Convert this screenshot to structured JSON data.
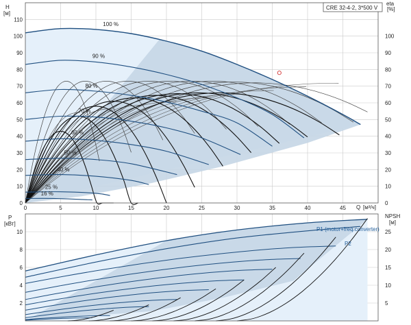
{
  "title_box": "CRE 32-4-2, 3*500 V",
  "chart_data": [
    {
      "type": "line",
      "ylabel": "H",
      "yunit": "[м]",
      "y2label": "eta",
      "y2unit": "[%]",
      "xlabel": "Q",
      "xunit": "[м³/ч]",
      "xlim": [
        0,
        50
      ],
      "ylim": [
        0,
        120
      ],
      "y2lim": [
        0,
        120
      ],
      "x_ticks": [
        0,
        5,
        10,
        15,
        20,
        25,
        30,
        35,
        40,
        45
      ],
      "y_ticks": [
        0,
        10,
        20,
        30,
        40,
        50,
        60,
        70,
        80,
        90,
        100,
        110
      ],
      "y2_ticks": [
        0,
        10,
        20,
        30,
        40,
        50,
        60,
        70,
        80,
        90,
        100
      ],
      "grid": true,
      "qh_curves": [
        {
          "name": "100 %",
          "x": [
            0,
            5,
            10,
            15,
            20,
            25,
            30,
            35,
            40,
            45,
            47.5
          ],
          "y": [
            102,
            104.5,
            104,
            101.5,
            97,
            91,
            83,
            74,
            64,
            53,
            47
          ]
        },
        {
          "name": "90 %",
          "x": [
            0,
            5,
            10,
            15,
            20,
            25,
            30,
            35,
            39.5
          ],
          "y": [
            83,
            85.5,
            84.5,
            81.5,
            77,
            71,
            63,
            53,
            39
          ]
        },
        {
          "name": "80 %",
          "x": [
            0,
            5,
            10,
            15,
            20,
            25,
            30,
            35
          ],
          "y": [
            66,
            68,
            67,
            64.5,
            60.5,
            55,
            48,
            34
          ]
        },
        {
          "name": "70 %",
          "x": [
            0,
            5,
            10,
            15,
            20,
            25,
            30.5
          ],
          "y": [
            50,
            52,
            51.5,
            49,
            45,
            39,
            29
          ]
        },
        {
          "name": "60 %",
          "x": [
            0,
            5,
            10,
            15,
            20,
            26
          ],
          "y": [
            37,
            38.5,
            37.5,
            35,
            31,
            23
          ]
        },
        {
          "name": "50 %",
          "x": [
            0,
            5,
            10,
            15,
            21.5
          ],
          "y": [
            26,
            26.8,
            26,
            23.5,
            17
          ]
        },
        {
          "name": "40 %",
          "x": [
            0,
            5,
            10,
            15,
            17.5
          ],
          "y": [
            16.5,
            17,
            16,
            13.5,
            11
          ]
        },
        {
          "name": "25 %",
          "x": [
            0,
            5,
            10,
            12
          ],
          "y": [
            6.5,
            6.7,
            5.8,
            4.5
          ]
        },
        {
          "name": "16 %",
          "x": [
            0,
            4,
            8,
            9.5
          ],
          "y": [
            2.7,
            2.7,
            2.1,
            1.8
          ]
        }
      ],
      "pct_labels": [
        {
          "text": "100 %",
          "x": 11,
          "y": 106
        },
        {
          "text": "90 %",
          "x": 9.5,
          "y": 87
        },
        {
          "text": "80 %",
          "x": 8.5,
          "y": 69
        },
        {
          "text": "70 %",
          "x": 7.5,
          "y": 54
        },
        {
          "text": "60 %",
          "x": 6.5,
          "y": 41
        },
        {
          "text": "50 %",
          "x": 5.5,
          "y": 29
        },
        {
          "text": "40 %",
          "x": 4.5,
          "y": 19
        },
        {
          "text": "25 %",
          "x": 2.8,
          "y": 8.5
        },
        {
          "text": "16 %",
          "x": 2.2,
          "y": 4.5
        }
      ],
      "eta_curves": [
        {
          "peak_x": 5.8,
          "peak_y": 73,
          "end_x": 10.5
        },
        {
          "peak_x": 8.5,
          "peak_y": 73,
          "end_x": 15
        },
        {
          "peak_x": 11.5,
          "peak_y": 73,
          "end_x": 19.5
        },
        {
          "peak_x": 14.5,
          "peak_y": 73,
          "end_x": 24
        },
        {
          "peak_x": 17.5,
          "peak_y": 73,
          "end_x": 28.5
        },
        {
          "peak_x": 20.5,
          "peak_y": 73,
          "end_x": 33
        },
        {
          "peak_x": 23.5,
          "peak_y": 73,
          "end_x": 37.5
        },
        {
          "peak_x": 26.5,
          "peak_y": 73,
          "end_x": 42
        },
        {
          "peak_x": 29.5,
          "peak_y": 72.5,
          "end_x": 46.5
        },
        {
          "peak_x": 32.5,
          "peak_y": 72,
          "end_x": 48.5
        }
      ],
      "eta_bold_curves": [
        {
          "peak_x": 5,
          "peak_y": 43,
          "end_x": 12.5
        },
        {
          "peak_x": 7.5,
          "peak_y": 52,
          "end_x": 16
        },
        {
          "peak_x": 10,
          "peak_y": 58,
          "end_x": 20
        },
        {
          "peak_x": 12.5,
          "peak_y": 61,
          "end_x": 24
        },
        {
          "peak_x": 15.5,
          "peak_y": 63,
          "end_x": 28
        },
        {
          "peak_x": 18.5,
          "peak_y": 64.5,
          "end_x": 32
        },
        {
          "peak_x": 21.5,
          "peak_y": 65.5,
          "end_x": 36
        },
        {
          "peak_x": 24.5,
          "peak_y": 66,
          "end_x": 40
        },
        {
          "peak_x": 27.5,
          "peak_y": 66,
          "end_x": 44.5
        }
      ],
      "duty_point": {
        "x": 36,
        "y": 78
      }
    },
    {
      "type": "line",
      "ylabel": "P",
      "yunit": "[кВт]",
      "y2label": "NPSH",
      "y2unit": "[м]",
      "xlim": [
        0,
        50
      ],
      "ylim": [
        0,
        12
      ],
      "y2lim": [
        0,
        30
      ],
      "y_ticks": [
        2,
        4,
        6,
        8,
        10
      ],
      "y2_ticks": [
        5,
        10,
        15,
        20,
        25
      ],
      "grid": true,
      "series_labels": [
        "P1 (motor+freq.converter)",
        "P2"
      ],
      "p1_curve": {
        "x": [
          0,
          10,
          20,
          30,
          40,
          48.5
        ],
        "y": [
          5.6,
          7.4,
          9.0,
          10.2,
          11.0,
          11.4
        ]
      },
      "p2_curve": {
        "x": [
          0,
          10,
          20,
          30,
          40,
          47.5
        ],
        "y": [
          4.9,
          6.6,
          8.1,
          9.3,
          10.1,
          10.6
        ]
      },
      "p_curves": [
        {
          "x0": 0,
          "y0": 4.2,
          "x1": 44,
          "y1": 8.4
        },
        {
          "x0": 0,
          "y0": 3.2,
          "x1": 39,
          "y1": 7.0
        },
        {
          "x0": 0,
          "y0": 2.4,
          "x1": 35,
          "y1": 5.8
        },
        {
          "x0": 0,
          "y0": 1.8,
          "x1": 31,
          "y1": 4.6
        },
        {
          "x0": 0,
          "y0": 1.2,
          "x1": 26,
          "y1": 3.5
        },
        {
          "x0": 0,
          "y0": 0.7,
          "x1": 21.5,
          "y1": 2.4
        },
        {
          "x0": 0,
          "y0": 0.35,
          "x1": 17.5,
          "y1": 1.6
        },
        {
          "x0": 0,
          "y0": 0.15,
          "x1": 12,
          "y1": 0.6
        },
        {
          "x0": 0,
          "y0": 0.08,
          "x1": 9.5,
          "y1": 0.35
        }
      ],
      "npsh_curves": [
        {
          "x0": 6,
          "x1": 12.5,
          "y1": 1.2
        },
        {
          "x0": 9,
          "x1": 17.5,
          "y1": 1.8
        },
        {
          "x0": 12,
          "x1": 22,
          "y1": 2.6
        },
        {
          "x0": 15,
          "x1": 27,
          "y1": 3.6
        },
        {
          "x0": 18,
          "x1": 31,
          "y1": 4.6
        },
        {
          "x0": 21,
          "x1": 35.5,
          "y1": 6.0
        },
        {
          "x0": 24,
          "x1": 39.5,
          "y1": 7.6
        },
        {
          "x0": 27,
          "x1": 44,
          "y1": 9.4
        },
        {
          "x0": 30,
          "x1": 48.5,
          "y1": 11.5
        }
      ]
    }
  ],
  "colors": {
    "light_fill": "#e5f0fa",
    "dark_fill": "#c5d6e6",
    "qh_line": "#1f4f80",
    "eta_line": "#444444",
    "eta_bold": "#111111",
    "p_line": "#1f4f80",
    "duty": "#d33333"
  }
}
